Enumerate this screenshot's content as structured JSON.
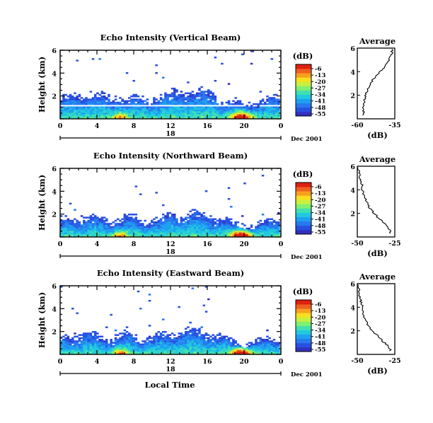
{
  "figure": {
    "xlabel": "Local Time",
    "date_label": "Dec 2001",
    "day_label": "18",
    "colorbar_label": "(dB)",
    "colorbar_ticks": [
      "-6",
      "-13",
      "-20",
      "-27",
      "-34",
      "-41",
      "-48",
      "-55"
    ],
    "avg_title": "Average",
    "avg_xlabel": "(dB)",
    "colors": {
      "colormap": [
        "#3030c0",
        "#2850e0",
        "#2878f0",
        "#1ea0f0",
        "#20c8e0",
        "#40e0b0",
        "#80f070",
        "#c8f040",
        "#f8e020",
        "#f8a020",
        "#f06020",
        "#e02010"
      ]
    }
  },
  "chart_data": [
    {
      "type": "heatmap",
      "title": "Echo Intensity (Vertical Beam)",
      "ylabel": "Height (km)",
      "xlim": [
        0,
        24
      ],
      "ylim": [
        0,
        6
      ],
      "x_ticks": [
        "0",
        "4",
        "8",
        "12",
        "16",
        "20",
        "0"
      ],
      "y_ticks": [
        "2",
        "4",
        "6"
      ],
      "value_range_db": [
        -55,
        -6
      ],
      "profile": [
        {
          "h": 0.5,
          "db": -56
        },
        {
          "h": 1.0,
          "db": -55.8
        },
        {
          "h": 1.5,
          "db": -55.2
        },
        {
          "h": 2.0,
          "db": -54.5
        },
        {
          "h": 2.5,
          "db": -53
        },
        {
          "h": 3.0,
          "db": -51
        },
        {
          "h": 3.5,
          "db": -48.5
        },
        {
          "h": 4.0,
          "db": -44.5
        },
        {
          "h": 4.5,
          "db": -41
        },
        {
          "h": 5.0,
          "db": -38.5
        },
        {
          "h": 5.5,
          "db": -37.2
        },
        {
          "h": 5.9,
          "db": -36.5
        }
      ],
      "average": {
        "title": "Average",
        "xlabel": "(dB)",
        "x_ticks": [
          "-60",
          "-35"
        ],
        "xlim": [
          -60,
          -35
        ],
        "y_ticks": [
          "2",
          "4",
          "6"
        ],
        "ylim": [
          0,
          6
        ]
      }
    },
    {
      "type": "heatmap",
      "title": "Echo Intensity (Northward Beam)",
      "ylabel": "Height (km)",
      "xlim": [
        0,
        24
      ],
      "ylim": [
        0,
        6
      ],
      "x_ticks": [
        "0",
        "4",
        "8",
        "12",
        "16",
        "20",
        "0"
      ],
      "y_ticks": [
        "2",
        "4",
        "6"
      ],
      "value_range_db": [
        -55,
        -6
      ],
      "profile": [
        {
          "h": 0.5,
          "db": -28
        },
        {
          "h": 1.0,
          "db": -31
        },
        {
          "h": 1.5,
          "db": -35
        },
        {
          "h": 2.0,
          "db": -39
        },
        {
          "h": 2.5,
          "db": -42
        },
        {
          "h": 3.0,
          "db": -44
        },
        {
          "h": 3.5,
          "db": -45.5
        },
        {
          "h": 4.0,
          "db": -46.5
        },
        {
          "h": 4.5,
          "db": -47
        },
        {
          "h": 5.0,
          "db": -48.5
        },
        {
          "h": 5.5,
          "db": -48.8
        },
        {
          "h": 5.9,
          "db": -49.5
        }
      ],
      "average": {
        "title": "Average",
        "xlabel": "(dB)",
        "x_ticks": [
          "-50",
          "-25"
        ],
        "xlim": [
          -50,
          -25
        ],
        "y_ticks": [
          "2",
          "4",
          "6"
        ],
        "ylim": [
          0,
          6
        ]
      }
    },
    {
      "type": "heatmap",
      "title": "Echo Intensity (Eastward Beam)",
      "ylabel": "Height (km)",
      "xlim": [
        0,
        24
      ],
      "ylim": [
        0,
        6
      ],
      "x_ticks": [
        "0",
        "4",
        "8",
        "12",
        "16",
        "20",
        "0"
      ],
      "y_ticks": [
        "2",
        "4",
        "6"
      ],
      "value_range_db": [
        -55,
        -6
      ],
      "profile": [
        {
          "h": 0.5,
          "db": -28
        },
        {
          "h": 1.0,
          "db": -32
        },
        {
          "h": 1.5,
          "db": -36
        },
        {
          "h": 2.0,
          "db": -40
        },
        {
          "h": 2.5,
          "db": -43
        },
        {
          "h": 3.0,
          "db": -45
        },
        {
          "h": 3.5,
          "db": -46
        },
        {
          "h": 4.0,
          "db": -46.5
        },
        {
          "h": 4.5,
          "db": -47.5
        },
        {
          "h": 5.0,
          "db": -48.5
        },
        {
          "h": 5.5,
          "db": -49
        },
        {
          "h": 5.9,
          "db": -49.5
        }
      ],
      "average": {
        "title": "Average",
        "xlabel": "(dB)",
        "x_ticks": [
          "-50",
          "-25"
        ],
        "xlim": [
          -50,
          -25
        ],
        "y_ticks": [
          "2",
          "4",
          "6"
        ],
        "ylim": [
          0,
          6
        ]
      }
    }
  ]
}
